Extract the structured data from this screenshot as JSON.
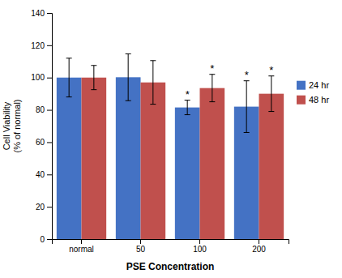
{
  "chart_data": {
    "type": "bar",
    "categories": [
      "normal",
      "50",
      "100",
      "200"
    ],
    "series": [
      {
        "name": "24 hr",
        "color": "#4472C4",
        "values": [
          100.0,
          100.2,
          81.5,
          82.0
        ],
        "errors": [
          12.0,
          14.5,
          4.5,
          16.0
        ]
      },
      {
        "name": "48 hr",
        "color": "#C0504D",
        "values": [
          100.0,
          97.0,
          93.5,
          90.0
        ],
        "errors": [
          7.5,
          13.5,
          8.5,
          11.0
        ]
      }
    ],
    "ylabel": "Cell Viability\n(% of normal)",
    "xlabel": "PSE Concentration",
    "ylim": [
      0,
      140
    ],
    "yticks": [
      0,
      20,
      40,
      60,
      80,
      100,
      120,
      140
    ],
    "annotations": [
      {
        "text": "*",
        "category": "100",
        "series": "24 hr"
      },
      {
        "text": "*",
        "category": "100",
        "series": "48 hr"
      },
      {
        "text": "*",
        "category": "200",
        "series": "24 hr"
      },
      {
        "text": "*",
        "category": "200",
        "series": "48 hr"
      }
    ],
    "legend": "right",
    "grid": false
  }
}
